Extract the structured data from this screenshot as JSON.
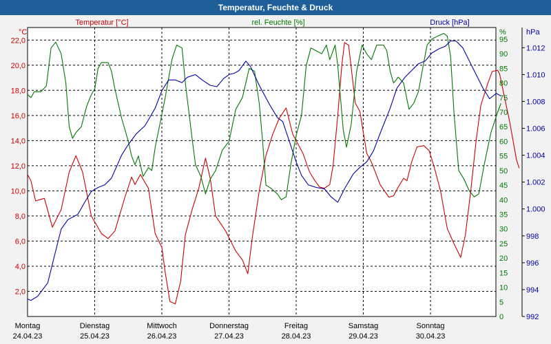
{
  "window": {
    "title": "Temperatur, Feuchte & Druck"
  },
  "colors": {
    "temperature": "#cc0000",
    "humidity": "#007700",
    "pressure": "#0000aa",
    "title_bg": "#1f5f99"
  },
  "chart_data": {
    "type": "line",
    "title": "Temperatur, Feuchte & Druck",
    "x_range": [
      0,
      7.05
    ],
    "x_unit": "days since 24.04.23 00:00",
    "x_ticks": [
      {
        "day": "Montag",
        "date": "24.04.23"
      },
      {
        "day": "Dienstag",
        "date": "25.04.23"
      },
      {
        "day": "Mittwoch",
        "date": "26.04.23"
      },
      {
        "day": "Donnerstag",
        "date": "27.04.23"
      },
      {
        "day": "Freitag",
        "date": "28.04.23"
      },
      {
        "day": "Samstag",
        "date": "29.04.23"
      },
      {
        "day": "Sonntag",
        "date": "30.04.23"
      }
    ],
    "axes": {
      "temperature": {
        "unit": "°C",
        "label": "Temperatur [°C]",
        "min": 0,
        "max": 23,
        "ticks": [
          "2,0",
          "4,0",
          "6,0",
          "8,0",
          "10,0",
          "12,0",
          "14,0",
          "16,0",
          "18,0",
          "20,0",
          "22,0"
        ]
      },
      "humidity": {
        "unit": "%",
        "label": "rel. Feuchte [%]",
        "min": 0,
        "max": 99,
        "ticks": [
          "0",
          "5",
          "10",
          "15",
          "20",
          "25",
          "30",
          "35",
          "40",
          "45",
          "50",
          "55",
          "60",
          "65",
          "70",
          "75",
          "80",
          "85",
          "90",
          "95"
        ]
      },
      "pressure": {
        "unit": "hPa",
        "label": "Druck [hPa]",
        "min": 992,
        "max": 1013.5,
        "ticks": [
          "992",
          "994",
          "996",
          "998",
          "1.000",
          "1.002",
          "1.004",
          "1.006",
          "1.008",
          "1.010",
          "1.012"
        ]
      }
    },
    "series": [
      {
        "name": "Temperatur [°C]",
        "axis": "temperature",
        "points": [
          [
            0,
            11.3
          ],
          [
            0.05,
            10.8
          ],
          [
            0.12,
            9.2
          ],
          [
            0.25,
            9.4
          ],
          [
            0.37,
            7.1
          ],
          [
            0.5,
            8.5
          ],
          [
            0.62,
            11.5
          ],
          [
            0.72,
            12.8
          ],
          [
            0.82,
            11.5
          ],
          [
            0.95,
            8
          ],
          [
            1.1,
            6.6
          ],
          [
            1.2,
            6.2
          ],
          [
            1.3,
            6.8
          ],
          [
            1.45,
            9.5
          ],
          [
            1.55,
            11.1
          ],
          [
            1.6,
            10.5
          ],
          [
            1.68,
            11.3
          ],
          [
            1.8,
            10.2
          ],
          [
            1.9,
            6.6
          ],
          [
            2.0,
            5.5
          ],
          [
            2.05,
            3.5
          ],
          [
            2.12,
            1.2
          ],
          [
            2.2,
            1.0
          ],
          [
            2.28,
            2.8
          ],
          [
            2.35,
            6.5
          ],
          [
            2.45,
            8.5
          ],
          [
            2.55,
            10.2
          ],
          [
            2.65,
            12.6
          ],
          [
            2.72,
            11.0
          ],
          [
            2.8,
            8.0
          ],
          [
            2.95,
            6.8
          ],
          [
            3.1,
            5.2
          ],
          [
            3.2,
            4.5
          ],
          [
            3.28,
            3.4
          ],
          [
            3.35,
            6.4
          ],
          [
            3.45,
            10
          ],
          [
            3.55,
            12.8
          ],
          [
            3.65,
            14.5
          ],
          [
            3.75,
            15.8
          ],
          [
            3.85,
            16.6
          ],
          [
            3.95,
            14.5
          ],
          [
            4.1,
            13
          ],
          [
            4.2,
            11.5
          ],
          [
            4.28,
            10.8
          ],
          [
            4.35,
            10.3
          ],
          [
            4.42,
            10.2
          ],
          [
            4.5,
            10.5
          ],
          [
            4.55,
            12
          ],
          [
            4.62,
            16
          ],
          [
            4.68,
            20
          ],
          [
            4.72,
            21.8
          ],
          [
            4.78,
            21.6
          ],
          [
            4.82,
            19.8
          ],
          [
            4.88,
            17
          ],
          [
            4.95,
            16.3
          ],
          [
            5.05,
            13
          ],
          [
            5.12,
            12.3
          ],
          [
            5.25,
            10.5
          ],
          [
            5.38,
            9.5
          ],
          [
            5.45,
            9.6
          ],
          [
            5.52,
            10.3
          ],
          [
            5.6,
            11
          ],
          [
            5.65,
            10.8
          ],
          [
            5.72,
            12.3
          ],
          [
            5.8,
            13.5
          ],
          [
            5.9,
            13.6
          ],
          [
            5.98,
            13.2
          ],
          [
            6.05,
            12
          ],
          [
            6.15,
            10
          ],
          [
            6.25,
            7
          ],
          [
            6.35,
            5.8
          ],
          [
            6.45,
            4.7
          ],
          [
            6.52,
            6.5
          ],
          [
            6.6,
            10
          ],
          [
            6.68,
            14
          ],
          [
            6.75,
            16.8
          ],
          [
            6.85,
            18.5
          ],
          [
            6.92,
            19.5
          ],
          [
            7.0,
            19.6
          ],
          [
            7.03,
            19.3
          ],
          [
            7.1,
            17.5
          ],
          [
            7.18,
            15.5
          ],
          [
            7.28,
            12.5
          ],
          [
            7.32,
            11.8
          ]
        ]
      },
      {
        "name": "rel. Feuchte [%]",
        "axis": "humidity",
        "points": [
          [
            0,
            76
          ],
          [
            0.05,
            75
          ],
          [
            0.1,
            77
          ],
          [
            0.2,
            77
          ],
          [
            0.28,
            79
          ],
          [
            0.35,
            92
          ],
          [
            0.42,
            94
          ],
          [
            0.5,
            90
          ],
          [
            0.57,
            80
          ],
          [
            0.62,
            65
          ],
          [
            0.67,
            61
          ],
          [
            0.72,
            63
          ],
          [
            0.8,
            65
          ],
          [
            0.88,
            72
          ],
          [
            0.95,
            76
          ],
          [
            1.0,
            78
          ],
          [
            1.05,
            85
          ],
          [
            1.1,
            87
          ],
          [
            1.2,
            87
          ],
          [
            1.25,
            84
          ],
          [
            1.3,
            78
          ],
          [
            1.4,
            68
          ],
          [
            1.5,
            60
          ],
          [
            1.55,
            55
          ],
          [
            1.6,
            52
          ],
          [
            1.65,
            55
          ],
          [
            1.72,
            48
          ],
          [
            1.8,
            51
          ],
          [
            1.85,
            50
          ],
          [
            1.9,
            58
          ],
          [
            1.98,
            67
          ],
          [
            2.05,
            75
          ],
          [
            2.15,
            88
          ],
          [
            2.22,
            93
          ],
          [
            2.3,
            92
          ],
          [
            2.35,
            80
          ],
          [
            2.45,
            61
          ],
          [
            2.5,
            52
          ],
          [
            2.58,
            48
          ],
          [
            2.65,
            42
          ],
          [
            2.72,
            47
          ],
          [
            2.8,
            50
          ],
          [
            2.9,
            57
          ],
          [
            3.0,
            60
          ],
          [
            3.1,
            71
          ],
          [
            3.2,
            75
          ],
          [
            3.3,
            85
          ],
          [
            3.38,
            84
          ],
          [
            3.45,
            73
          ],
          [
            3.5,
            60
          ],
          [
            3.55,
            45
          ],
          [
            3.62,
            44
          ],
          [
            3.72,
            42
          ],
          [
            3.78,
            40
          ],
          [
            3.85,
            41
          ],
          [
            3.92,
            52
          ],
          [
            4.0,
            62
          ],
          [
            4.08,
            69
          ],
          [
            4.15,
            86
          ],
          [
            4.22,
            92
          ],
          [
            4.3,
            91
          ],
          [
            4.38,
            90
          ],
          [
            4.45,
            93
          ],
          [
            4.5,
            88
          ],
          [
            4.58,
            93
          ],
          [
            4.62,
            86
          ],
          [
            4.7,
            64
          ],
          [
            4.75,
            58
          ],
          [
            4.82,
            66
          ],
          [
            4.9,
            84
          ],
          [
            4.98,
            93
          ],
          [
            5.05,
            90
          ],
          [
            5.12,
            88
          ],
          [
            5.2,
            93
          ],
          [
            5.3,
            93
          ],
          [
            5.35,
            91
          ],
          [
            5.4,
            84
          ],
          [
            5.45,
            80
          ],
          [
            5.52,
            82
          ],
          [
            5.6,
            80
          ],
          [
            5.68,
            71
          ],
          [
            5.75,
            73
          ],
          [
            5.82,
            77
          ],
          [
            5.9,
            87
          ],
          [
            5.95,
            93
          ],
          [
            6.02,
            95
          ],
          [
            6.1,
            96
          ],
          [
            6.2,
            97
          ],
          [
            6.25,
            96
          ],
          [
            6.3,
            89
          ],
          [
            6.35,
            70
          ],
          [
            6.42,
            50
          ],
          [
            6.5,
            47
          ],
          [
            6.58,
            43
          ],
          [
            6.65,
            41
          ],
          [
            6.72,
            42
          ],
          [
            6.8,
            52
          ],
          [
            6.9,
            63
          ],
          [
            7.0,
            70
          ],
          [
            7.05,
            73
          ]
        ]
      },
      {
        "name": "Druck [hPa]",
        "axis": "pressure",
        "points": [
          [
            0,
            993.3
          ],
          [
            0.05,
            993.2
          ],
          [
            0.15,
            993.5
          ],
          [
            0.3,
            994.5
          ],
          [
            0.4,
            996.5
          ],
          [
            0.5,
            998.5
          ],
          [
            0.6,
            999.2
          ],
          [
            0.75,
            999.6
          ],
          [
            0.85,
            1000.5
          ],
          [
            0.95,
            1001.3
          ],
          [
            1.05,
            1001.6
          ],
          [
            1.15,
            1001.8
          ],
          [
            1.25,
            1002.3
          ],
          [
            1.4,
            1004
          ],
          [
            1.5,
            1004.8
          ],
          [
            1.62,
            1005.6
          ],
          [
            1.75,
            1006.2
          ],
          [
            1.9,
            1007.5
          ],
          [
            2.0,
            1008.8
          ],
          [
            2.1,
            1009.6
          ],
          [
            2.2,
            1009.6
          ],
          [
            2.3,
            1009.4
          ],
          [
            2.38,
            1009.8
          ],
          [
            2.5,
            1010
          ],
          [
            2.6,
            1009.6
          ],
          [
            2.72,
            1009.2
          ],
          [
            2.82,
            1009.1
          ],
          [
            2.92,
            1009.7
          ],
          [
            3.0,
            1010.0
          ],
          [
            3.08,
            1010.1
          ],
          [
            3.15,
            1010.3
          ],
          [
            3.25,
            1011.0
          ],
          [
            3.32,
            1010.6
          ],
          [
            3.45,
            1009.2
          ],
          [
            3.6,
            1007.8
          ],
          [
            3.72,
            1006.8
          ],
          [
            3.8,
            1006.5
          ],
          [
            3.9,
            1005.0
          ],
          [
            4.0,
            1003.5
          ],
          [
            4.08,
            1002.5
          ],
          [
            4.18,
            1001.8
          ],
          [
            4.3,
            1001.6
          ],
          [
            4.42,
            1001.5
          ],
          [
            4.52,
            1000.9
          ],
          [
            4.62,
            1000.5
          ],
          [
            4.72,
            1001.5
          ],
          [
            4.85,
            1002.6
          ],
          [
            4.95,
            1003.1
          ],
          [
            5.05,
            1003.5
          ],
          [
            5.15,
            1004.3
          ],
          [
            5.28,
            1006
          ],
          [
            5.4,
            1007.5
          ],
          [
            5.5,
            1009
          ],
          [
            5.62,
            1009.8
          ],
          [
            5.72,
            1010.3
          ],
          [
            5.82,
            1010.8
          ],
          [
            5.92,
            1011.0
          ],
          [
            6.02,
            1011.6
          ],
          [
            6.12,
            1011.9
          ],
          [
            6.22,
            1012.1
          ],
          [
            6.3,
            1012.5
          ],
          [
            6.38,
            1012.5
          ],
          [
            6.48,
            1012.0
          ],
          [
            6.58,
            1011.0
          ],
          [
            6.68,
            1010.0
          ],
          [
            6.78,
            1009.0
          ],
          [
            6.88,
            1008.2
          ],
          [
            6.98,
            1008.6
          ],
          [
            7.05,
            1008.4
          ]
        ]
      }
    ]
  }
}
